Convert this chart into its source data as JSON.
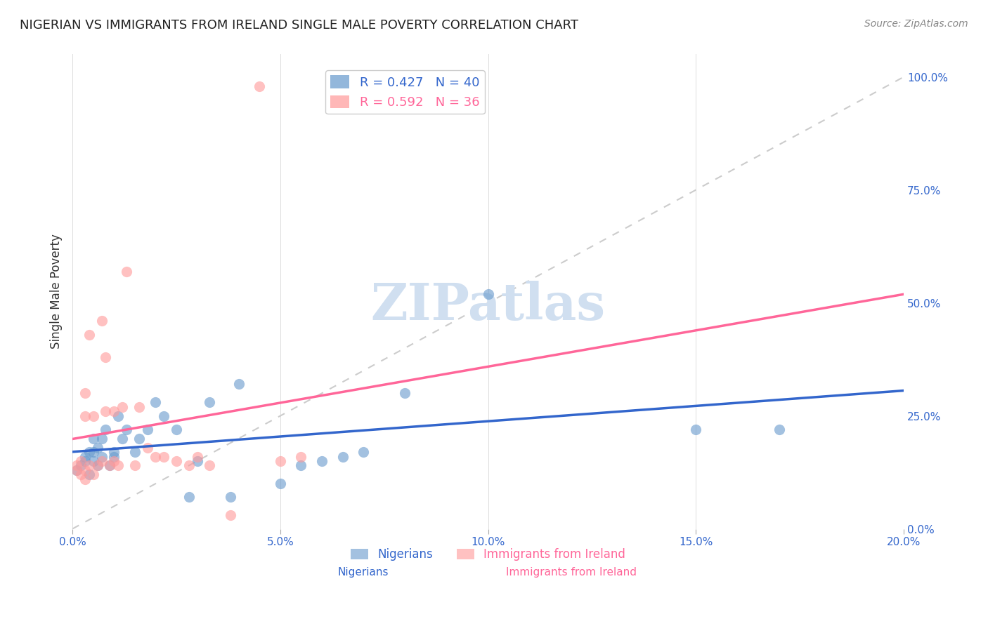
{
  "title": "NIGERIAN VS IMMIGRANTS FROM IRELAND SINGLE MALE POVERTY CORRELATION CHART",
  "source": "Source: ZipAtlas.com",
  "ylabel": "Single Male Poverty",
  "xlabel_ticks": [
    "0.0%",
    "5.0%",
    "10.0%",
    "15.0%",
    "20.0%"
  ],
  "xlabel_vals": [
    0.0,
    0.05,
    0.1,
    0.15,
    0.2
  ],
  "ylabel_ticks": [
    "0.0%",
    "25.0%",
    "50.0%",
    "75.0%",
    "100.0%"
  ],
  "ylabel_vals": [
    0.0,
    0.25,
    0.5,
    0.75,
    1.0
  ],
  "xlim": [
    0.0,
    0.2
  ],
  "ylim": [
    0.0,
    1.05
  ],
  "nigerian_R": 0.427,
  "nigerian_N": 40,
  "ireland_R": 0.592,
  "ireland_N": 36,
  "nigerian_color": "#6699CC",
  "ireland_color": "#FF9999",
  "nigerian_line_color": "#3366CC",
  "ireland_line_color": "#FF6699",
  "diagonal_color": "#CCCCCC",
  "nigerian_x": [
    0.001,
    0.002,
    0.003,
    0.003,
    0.004,
    0.004,
    0.005,
    0.005,
    0.005,
    0.006,
    0.006,
    0.007,
    0.007,
    0.008,
    0.009,
    0.01,
    0.01,
    0.011,
    0.012,
    0.013,
    0.015,
    0.016,
    0.018,
    0.02,
    0.022,
    0.025,
    0.028,
    0.03,
    0.033,
    0.038,
    0.04,
    0.05,
    0.055,
    0.06,
    0.065,
    0.07,
    0.08,
    0.1,
    0.15,
    0.17
  ],
  "nigerian_y": [
    0.13,
    0.14,
    0.15,
    0.16,
    0.12,
    0.17,
    0.15,
    0.17,
    0.2,
    0.14,
    0.18,
    0.16,
    0.2,
    0.22,
    0.14,
    0.16,
    0.17,
    0.25,
    0.2,
    0.22,
    0.17,
    0.2,
    0.22,
    0.28,
    0.25,
    0.22,
    0.07,
    0.15,
    0.28,
    0.07,
    0.32,
    0.1,
    0.14,
    0.15,
    0.16,
    0.17,
    0.3,
    0.52,
    0.22,
    0.22
  ],
  "ireland_x": [
    0.001,
    0.001,
    0.002,
    0.002,
    0.003,
    0.003,
    0.003,
    0.003,
    0.004,
    0.004,
    0.005,
    0.005,
    0.006,
    0.007,
    0.007,
    0.008,
    0.008,
    0.009,
    0.01,
    0.01,
    0.011,
    0.012,
    0.013,
    0.015,
    0.016,
    0.018,
    0.02,
    0.022,
    0.025,
    0.028,
    0.03,
    0.033,
    0.038,
    0.045,
    0.05,
    0.055
  ],
  "ireland_y": [
    0.13,
    0.14,
    0.12,
    0.15,
    0.11,
    0.13,
    0.25,
    0.3,
    0.14,
    0.43,
    0.12,
    0.25,
    0.14,
    0.15,
    0.46,
    0.26,
    0.38,
    0.14,
    0.15,
    0.26,
    0.14,
    0.27,
    0.57,
    0.14,
    0.27,
    0.18,
    0.16,
    0.16,
    0.15,
    0.14,
    0.16,
    0.14,
    0.03,
    0.98,
    0.15,
    0.16
  ],
  "watermark_text": "ZIPatlas",
  "watermark_color": "#D0DFF0",
  "background_color": "#FFFFFF",
  "grid_color": "#DDDDDD"
}
